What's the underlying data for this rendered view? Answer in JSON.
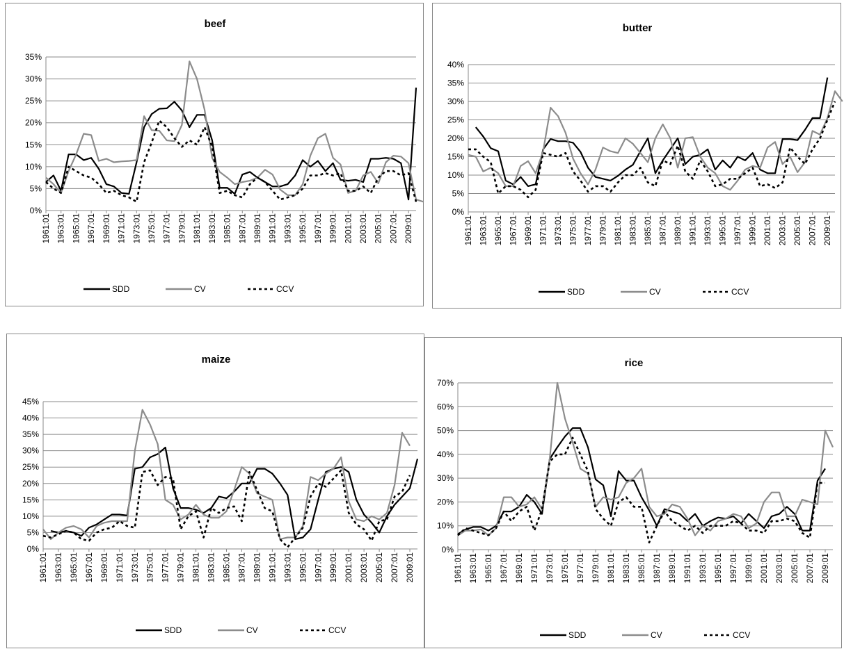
{
  "page": {
    "background": "#ffffff"
  },
  "styles": {
    "SDD": {
      "color": "#000000",
      "dash": "solid"
    },
    "CV": {
      "color": "#8c8c8c",
      "dash": "solid"
    },
    "CCV": {
      "color": "#000000",
      "dash": "dotted"
    }
  },
  "chart_data": [
    {
      "type": "line",
      "title": "beef",
      "x_tick_labels": [
        "1961:01",
        "1963:01",
        "1965:01",
        "1967:01",
        "1969:01",
        "1971:01",
        "1973:01",
        "1975:01",
        "1977:01",
        "1979:01",
        "1981:01",
        "1983:01",
        "1985:01",
        "1987:01",
        "1989:01",
        "1991:01",
        "1993:01",
        "1995:01",
        "1997:01",
        "1999:01",
        "2001:01",
        "2003:01",
        "2005:01",
        "2007:01",
        "2009:01"
      ],
      "x_range": [
        1961,
        2010
      ],
      "ylim": [
        0,
        35
      ],
      "y_tick_labels": [
        "0%",
        "5%",
        "10%",
        "15%",
        "20%",
        "25%",
        "30%",
        "35%"
      ],
      "grid": true,
      "legend_position": "bottom",
      "series": [
        {
          "name": "SDD",
          "x_start": 1961,
          "values": [
            6.5,
            8,
            4.5,
            12.8,
            12.8,
            11.5,
            12,
            9.5,
            6,
            5.5,
            4,
            3.8,
            11,
            19,
            22,
            23.2,
            23.3,
            24.8,
            22.8,
            19,
            21.8,
            21.8,
            16,
            5.2,
            5.2,
            3.8,
            8.2,
            8.8,
            7.5,
            6.5,
            5.5,
            5.5,
            6,
            8,
            11.5,
            10,
            11.3,
            9,
            10.8,
            7,
            6.8,
            7,
            6.5,
            11.8,
            11.8,
            12,
            11.8,
            10.8,
            2.5,
            28
          ]
        },
        {
          "name": "CV",
          "x_start": 1961,
          "values": [
            7.5,
            6,
            4,
            9,
            12.8,
            17.5,
            17.2,
            11.3,
            11.8,
            11,
            11.2,
            11.3,
            11.5,
            21.5,
            18.3,
            18.2,
            16,
            15.8,
            19.5,
            34,
            30,
            23,
            12,
            8.8,
            7.5,
            6,
            6.5,
            6.8,
            7.5,
            9.3,
            8.2,
            4.8,
            3.5,
            3.5,
            6,
            12.5,
            16.5,
            17.5,
            12,
            10.5,
            4,
            4.5,
            8,
            8.8,
            6.2,
            11,
            12.5,
            12.3,
            10.8,
            2.5,
            2
          ]
        },
        {
          "name": "CCV",
          "x_start": 1961,
          "values": [
            6.5,
            5,
            4,
            10,
            9,
            8,
            7.5,
            6,
            4,
            4.5,
            3.5,
            3,
            2,
            11,
            15.5,
            20.5,
            19,
            16.5,
            14.5,
            16,
            15,
            19,
            14.5,
            4,
            4.5,
            3.5,
            3,
            6,
            7.5,
            6.5,
            4.5,
            2.5,
            3,
            3.5,
            5,
            8,
            8,
            8.5,
            8,
            8.5,
            4.5,
            4.5,
            5.5,
            4,
            7.5,
            9,
            9,
            8,
            8.5,
            2
          ]
        }
      ]
    },
    {
      "type": "line",
      "title": "butter",
      "x_tick_labels": [
        "1961:01",
        "1963:01",
        "1965:01",
        "1967:01",
        "1969:01",
        "1971:01",
        "1973:01",
        "1975:01",
        "1977:01",
        "1979:01",
        "1981:01",
        "1983:01",
        "1985:01",
        "1987:01",
        "1989:01",
        "1991:01",
        "1993:01",
        "1995:01",
        "1997:01",
        "1999:01",
        "2001:01",
        "2003:01",
        "2005:01",
        "2007:01",
        "2009:01"
      ],
      "x_range": [
        1961,
        2010
      ],
      "ylim": [
        0,
        40
      ],
      "y_tick_labels": [
        "0%",
        "5%",
        "10%",
        "15%",
        "20%",
        "25%",
        "30%",
        "35%",
        "40%"
      ],
      "grid": true,
      "legend_position": "bottom",
      "series": [
        {
          "name": "SDD",
          "x_start": 1962,
          "values": [
            23,
            20.5,
            17.3,
            16.5,
            8.5,
            7.5,
            9.5,
            7,
            7.5,
            17,
            19.8,
            19.2,
            19.2,
            18.8,
            16.3,
            12,
            9.5,
            9,
            8.5,
            9.8,
            11.5,
            12.8,
            16.5,
            20,
            10.5,
            14,
            17,
            20,
            13,
            15,
            15.5,
            17,
            11.5,
            14,
            12,
            15,
            14,
            16,
            11.5,
            10.5,
            10.5,
            19.8,
            19.8,
            19.5,
            22.3,
            25.5,
            25.5,
            36.5
          ]
        },
        {
          "name": "CV",
          "x_start": 1961,
          "values": [
            15.5,
            15,
            11,
            12,
            10.5,
            7,
            7,
            12.5,
            13.8,
            10.5,
            16.5,
            28.3,
            26,
            21.5,
            14.5,
            10.5,
            7.5,
            11.5,
            17.5,
            16.5,
            16,
            20,
            18.5,
            16,
            13.5,
            20,
            23.8,
            20,
            12,
            20,
            20.3,
            15,
            12,
            10.5,
            7,
            6,
            8.5,
            11.5,
            12.5,
            12,
            17.5,
            19,
            13,
            15,
            10.8,
            13.5,
            22,
            21,
            25.5,
            32.8,
            30
          ]
        },
        {
          "name": "CCV",
          "x_start": 1961,
          "values": [
            17,
            17,
            15,
            13.5,
            5,
            7,
            7,
            6,
            4,
            6,
            16,
            15.5,
            15,
            16,
            11,
            8.5,
            5.5,
            7,
            7,
            5.5,
            8,
            10,
            10,
            12,
            8,
            7,
            14,
            13,
            18,
            11,
            9,
            14,
            11,
            7,
            7.5,
            9,
            9,
            10.5,
            12,
            7,
            7.5,
            6.5,
            8,
            17.5,
            15,
            13,
            17,
            20,
            25,
            30
          ]
        }
      ]
    },
    {
      "type": "line",
      "title": "maize",
      "x_tick_labels": [
        "1961:01",
        "1963:01",
        "1965:01",
        "1967:01",
        "1969:01",
        "1971:01",
        "1973:01",
        "1975:01",
        "1977:01",
        "1979:01",
        "1981:01",
        "1983:01",
        "1985:01",
        "1987:01",
        "1989:01",
        "1991:01",
        "1993:01",
        "1995:01",
        "1997:01",
        "1999:01",
        "2001:01",
        "2003:01",
        "2005:01",
        "2007:01",
        "2009:01"
      ],
      "x_range": [
        1961,
        2010
      ],
      "ylim": [
        0,
        45
      ],
      "y_tick_labels": [
        "0%",
        "5%",
        "10%",
        "15%",
        "20%",
        "25%",
        "30%",
        "35%",
        "40%",
        "45%"
      ],
      "grid": true,
      "legend_position": "bottom",
      "series": [
        {
          "name": "SDD",
          "x_start": 1962,
          "values": [
            5.5,
            5,
            5.5,
            5,
            4,
            6.5,
            7.5,
            9,
            10.5,
            10.5,
            10.2,
            24.5,
            25,
            28,
            29,
            31,
            18.5,
            12.5,
            12.5,
            12,
            11,
            12.5,
            16,
            15.5,
            17.5,
            20,
            20,
            24.5,
            24.5,
            23,
            20,
            16.5,
            3,
            3.5,
            6,
            15,
            23.5,
            24.5,
            25,
            23.5,
            15,
            10.5,
            8,
            5,
            10,
            13.5,
            16,
            18.5,
            27.5
          ]
        },
        {
          "name": "CV",
          "x_start": 1961,
          "values": [
            6,
            3,
            5,
            6.5,
            7,
            6,
            3.5,
            7,
            8,
            8.5,
            8.5,
            8.5,
            30,
            42.5,
            38,
            32,
            15,
            13.5,
            9,
            10.5,
            13.5,
            10.5,
            9.5,
            9.5,
            11.5,
            18,
            25,
            23,
            17,
            16,
            15,
            3,
            3.5,
            3.5,
            7,
            22,
            21,
            23,
            24.5,
            28,
            14.5,
            9,
            8.5,
            10,
            9,
            11,
            19.5,
            35.5,
            31.5
          ]
        },
        {
          "name": "CCV",
          "x_start": 1961,
          "values": [
            4,
            3.5,
            4.5,
            5.5,
            5,
            3,
            2.5,
            5,
            6,
            6.5,
            8.5,
            7,
            6.5,
            23.5,
            24,
            19.5,
            22,
            21.5,
            6,
            10,
            11.5,
            3.5,
            12.5,
            11,
            12.5,
            13,
            8.5,
            23.5,
            18,
            12.5,
            11.5,
            3,
            0.5,
            3.5,
            6.5,
            16,
            20,
            19,
            21.5,
            24,
            11,
            7.5,
            6,
            2.5,
            8.5,
            9,
            16,
            17.5,
            22.5
          ]
        }
      ]
    },
    {
      "type": "line",
      "title": "rice",
      "x_tick_labels": [
        "1961:01",
        "1963:01",
        "1965:01",
        "1967:01",
        "1969:01",
        "1971:01",
        "1973:01",
        "1975:01",
        "1977:01",
        "1979:01",
        "1981:01",
        "1983:01",
        "1985:01",
        "1987:01",
        "1989:01",
        "1991:01",
        "1993:01",
        "1995:01",
        "1997:01",
        "1999:01",
        "2001:01",
        "2003:01",
        "2005:01",
        "2007:01",
        "2009:01"
      ],
      "x_range": [
        1961,
        2010
      ],
      "ylim": [
        0,
        70
      ],
      "y_tick_labels": [
        "0%",
        "10%",
        "20%",
        "30%",
        "40%",
        "50%",
        "60%",
        "70%"
      ],
      "grid": true,
      "legend_position": "bottom",
      "series": [
        {
          "name": "SDD",
          "x_start": 1961,
          "values": [
            6.5,
            8.5,
            9.5,
            9.5,
            8,
            10,
            16,
            16,
            18,
            23,
            20,
            15,
            38,
            43,
            47.5,
            51,
            51,
            43,
            29.5,
            27,
            14,
            33,
            29,
            29,
            22,
            16.5,
            10,
            17,
            16,
            15,
            12,
            15,
            10,
            12,
            13.5,
            13,
            14,
            11,
            15,
            12,
            9,
            14,
            15,
            18,
            15,
            8,
            8,
            29,
            34
          ]
        },
        {
          "name": "CV",
          "x_start": 1961,
          "values": [
            6,
            8,
            8,
            8.5,
            6,
            9,
            22,
            22,
            18,
            19,
            22,
            17,
            38,
            70,
            55,
            45,
            34,
            32,
            18,
            22,
            21,
            22,
            28,
            30,
            34,
            18,
            14,
            15,
            19,
            18,
            13,
            6,
            10,
            8,
            12,
            13,
            15,
            14,
            9,
            11,
            20,
            24,
            24,
            14,
            14,
            21,
            20,
            19,
            50,
            43
          ]
        },
        {
          "name": "CCV",
          "x_start": 1961,
          "values": [
            6,
            9,
            8,
            7,
            6,
            9,
            16,
            12,
            16,
            18,
            8,
            17,
            37,
            40,
            40,
            47,
            40,
            33,
            17,
            13,
            10,
            20,
            22,
            18,
            18,
            3,
            10,
            16,
            12,
            10,
            8,
            10,
            7,
            10,
            10,
            10,
            12,
            11,
            8,
            8,
            7,
            12,
            12,
            13,
            12,
            7,
            5,
            28,
            28
          ]
        }
      ]
    }
  ]
}
